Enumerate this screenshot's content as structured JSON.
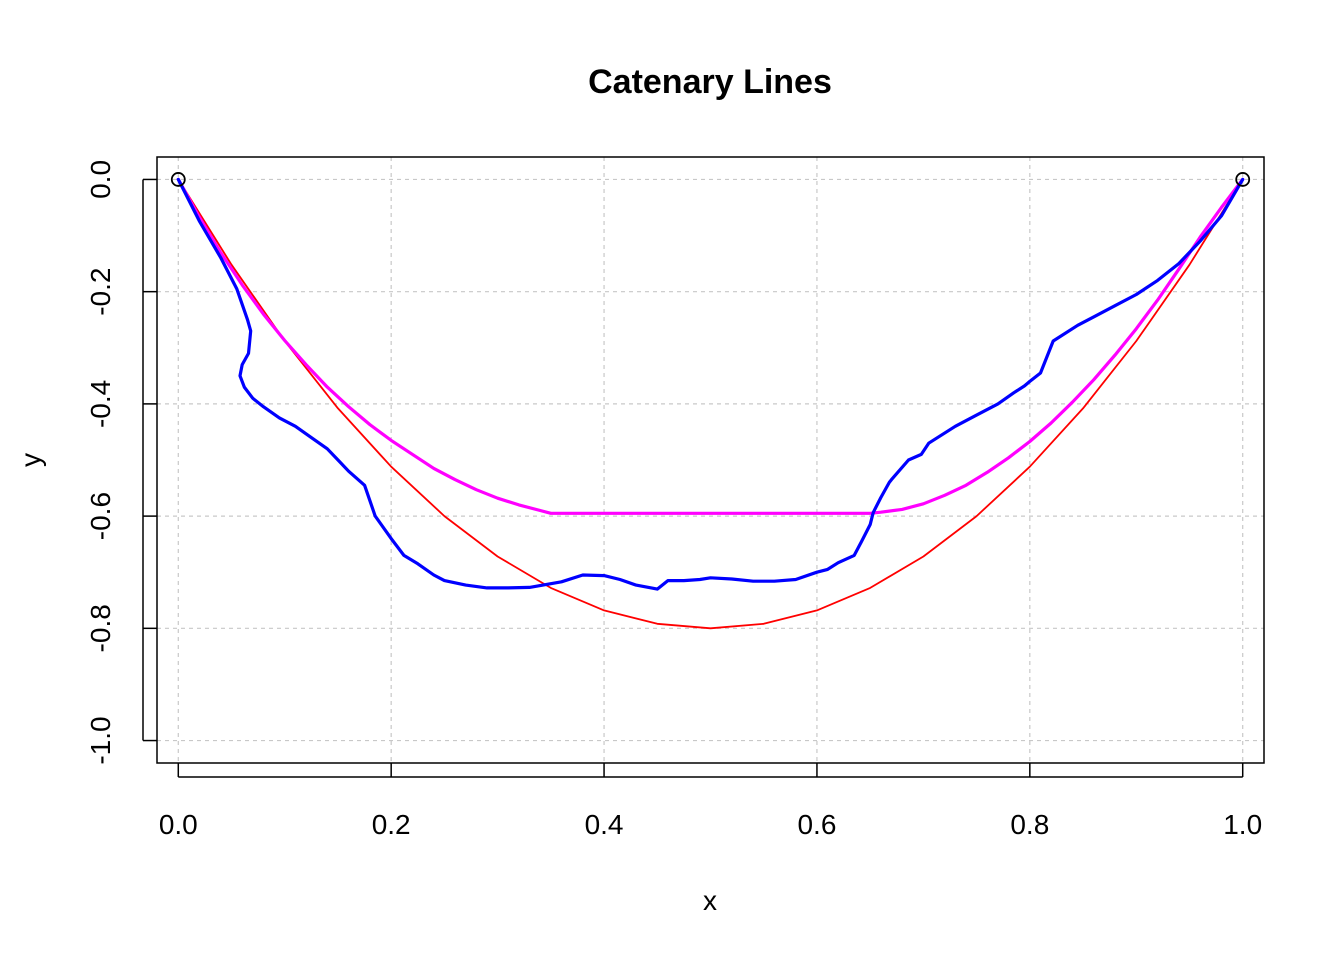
{
  "chart_data": {
    "type": "line",
    "title": "Catenary Lines",
    "xlabel": "x",
    "ylabel": "y",
    "xlim": [
      -0.02,
      1.02
    ],
    "ylim": [
      -1.04,
      0.04
    ],
    "xticks": [
      "0.0",
      "0.2",
      "0.4",
      "0.6",
      "0.8",
      "1.0"
    ],
    "xtick_values": [
      0,
      0.2,
      0.4,
      0.6,
      0.8,
      1.0
    ],
    "yticks": [
      "0.0",
      "-0.2",
      "-0.4",
      "-0.6",
      "-0.8",
      "-1.0"
    ],
    "ytick_values": [
      0,
      -0.2,
      -0.4,
      -0.6,
      -0.8,
      -1.0
    ],
    "grid": true,
    "colors": {
      "red": "#ff0000",
      "blue": "#0000ff",
      "magenta": "#ff00ff",
      "grid": "#c8c8c8"
    },
    "endpoints": [
      {
        "x": 0,
        "y": 0
      },
      {
        "x": 1,
        "y": 0
      }
    ],
    "series": [
      {
        "color": "red",
        "x": [
          0,
          0.05,
          0.1,
          0.15,
          0.2,
          0.25,
          0.3,
          0.35,
          0.4,
          0.45,
          0.5,
          0.55,
          0.6,
          0.65,
          0.7,
          0.75,
          0.8,
          0.85,
          0.9,
          0.95,
          1.0
        ],
        "y": [
          0,
          -0.152,
          -0.288,
          -0.408,
          -0.512,
          -0.6,
          -0.672,
          -0.728,
          -0.768,
          -0.792,
          -0.8,
          -0.792,
          -0.768,
          -0.728,
          -0.672,
          -0.6,
          -0.512,
          -0.408,
          -0.288,
          -0.152,
          0
        ]
      },
      {
        "color": "magenta",
        "x": [
          0,
          0.02,
          0.04,
          0.06,
          0.08,
          0.1,
          0.12,
          0.14,
          0.16,
          0.18,
          0.2,
          0.22,
          0.24,
          0.26,
          0.28,
          0.3,
          0.32,
          0.34,
          0.35,
          0.4,
          0.5,
          0.6,
          0.65,
          0.66,
          0.68,
          0.7,
          0.72,
          0.74,
          0.76,
          0.78,
          0.8,
          0.82,
          0.84,
          0.86,
          0.88,
          0.9,
          0.92,
          0.94,
          0.96,
          0.98,
          1.0
        ],
        "y": [
          0,
          -0.068,
          -0.131,
          -0.188,
          -0.24,
          -0.287,
          -0.33,
          -0.37,
          -0.405,
          -0.437,
          -0.465,
          -0.49,
          -0.515,
          -0.535,
          -0.553,
          -0.568,
          -0.58,
          -0.59,
          -0.595,
          -0.595,
          -0.595,
          -0.595,
          -0.595,
          -0.593,
          -0.588,
          -0.578,
          -0.563,
          -0.545,
          -0.522,
          -0.496,
          -0.467,
          -0.434,
          -0.397,
          -0.357,
          -0.313,
          -0.266,
          -0.215,
          -0.16,
          -0.103,
          -0.05,
          0
        ]
      },
      {
        "color": "blue",
        "x": [
          0,
          0.02,
          0.04,
          0.055,
          0.065,
          0.068,
          0.067,
          0.066,
          0.06,
          0.058,
          0.062,
          0.07,
          0.08,
          0.095,
          0.11,
          0.125,
          0.14,
          0.15,
          0.16,
          0.175,
          0.185,
          0.2,
          0.212,
          0.225,
          0.24,
          0.25,
          0.27,
          0.29,
          0.31,
          0.33,
          0.36,
          0.38,
          0.4,
          0.415,
          0.43,
          0.45,
          0.46,
          0.475,
          0.49,
          0.5,
          0.52,
          0.54,
          0.56,
          0.58,
          0.6,
          0.61,
          0.62,
          0.635,
          0.642,
          0.65,
          0.652,
          0.653,
          0.66,
          0.668,
          0.67,
          0.686,
          0.698,
          0.705,
          0.73,
          0.75,
          0.77,
          0.785,
          0.795,
          0.8,
          0.81,
          0.822,
          0.845,
          0.86,
          0.88,
          0.9,
          0.92,
          0.94,
          0.96,
          0.98,
          1.0
        ],
        "y": [
          0,
          -0.075,
          -0.14,
          -0.195,
          -0.25,
          -0.27,
          -0.29,
          -0.31,
          -0.33,
          -0.35,
          -0.37,
          -0.39,
          -0.405,
          -0.425,
          -0.44,
          -0.46,
          -0.48,
          -0.5,
          -0.52,
          -0.545,
          -0.6,
          -0.64,
          -0.67,
          -0.685,
          -0.705,
          -0.715,
          -0.723,
          -0.728,
          -0.728,
          -0.727,
          -0.717,
          -0.705,
          -0.706,
          -0.713,
          -0.723,
          -0.73,
          -0.715,
          -0.715,
          -0.713,
          -0.71,
          -0.712,
          -0.716,
          -0.716,
          -0.713,
          -0.7,
          -0.695,
          -0.683,
          -0.67,
          -0.645,
          -0.615,
          -0.6,
          -0.593,
          -0.567,
          -0.54,
          -0.535,
          -0.5,
          -0.49,
          -0.47,
          -0.44,
          -0.42,
          -0.4,
          -0.38,
          -0.368,
          -0.36,
          -0.345,
          -0.288,
          -0.26,
          -0.245,
          -0.225,
          -0.205,
          -0.18,
          -0.15,
          -0.11,
          -0.065,
          0
        ]
      }
    ]
  }
}
